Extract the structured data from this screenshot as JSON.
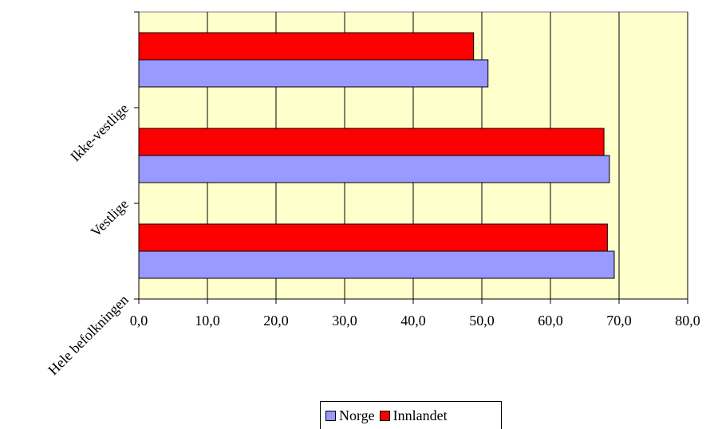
{
  "chart_data": {
    "type": "bar",
    "orientation": "horizontal",
    "categories": [
      "Hele befolkningen",
      "Vestlige",
      "Ikke-vestlige"
    ],
    "series": [
      {
        "name": "Norge",
        "color": "#9999ff",
        "values": [
          69.3,
          68.6,
          50.9
        ]
      },
      {
        "name": "Innlandet",
        "color": "#ff0000",
        "values": [
          68.3,
          67.8,
          48.8
        ]
      }
    ],
    "x_ticks": [
      "0,0",
      "10,0",
      "20,0",
      "30,0",
      "40,0",
      "50,0",
      "60,0",
      "70,0",
      "80,0"
    ],
    "xlim": [
      0,
      80
    ],
    "grid": true,
    "plot_background": "#ffffcc",
    "legend_position": "bottom"
  }
}
